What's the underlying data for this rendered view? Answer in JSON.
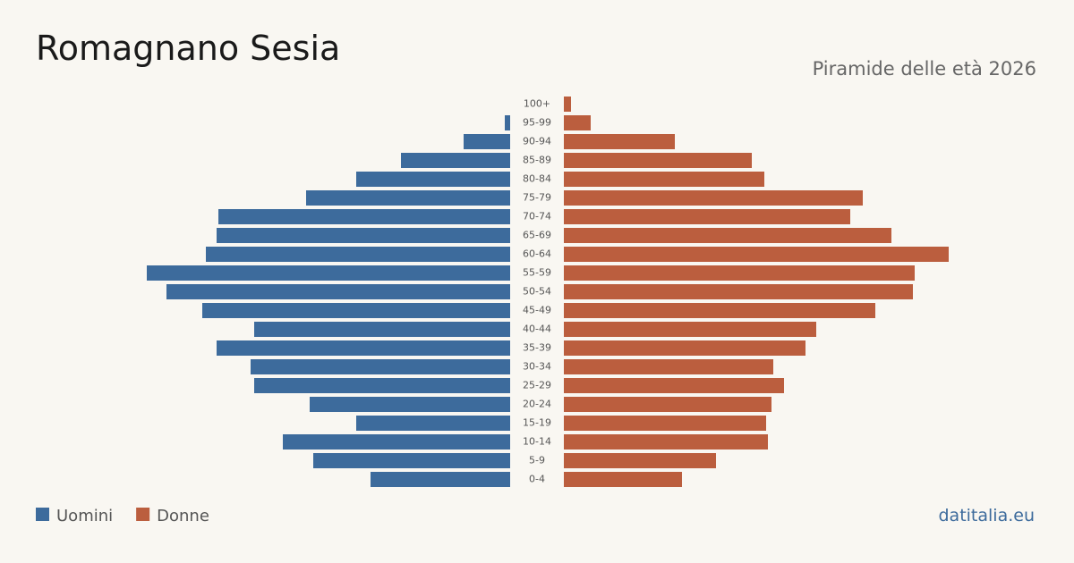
{
  "chart_data": {
    "type": "pyramid",
    "title": "Romagnano Sesia",
    "subtitle": "Piramide delle età 2026",
    "source": "datitalia.eu",
    "categories": [
      "100+",
      "95-99",
      "90-94",
      "85-89",
      "80-84",
      "75-79",
      "70-74",
      "65-69",
      "60-64",
      "55-59",
      "50-54",
      "45-49",
      "40-44",
      "35-39",
      "30-34",
      "25-29",
      "20-24",
      "15-19",
      "10-14",
      "5-9",
      "0-4"
    ],
    "series": [
      {
        "name": "Uomini",
        "color": "#3d6b9c",
        "side": "left",
        "values": [
          0,
          3,
          26,
          61,
          86,
          114,
          163,
          164,
          170,
          203,
          192,
          172,
          143,
          164,
          145,
          143,
          112,
          86,
          127,
          110,
          78
        ]
      },
      {
        "name": "Donne",
        "color": "#bb5e3e",
        "side": "right",
        "values": [
          4,
          15,
          62,
          105,
          112,
          167,
          160,
          183,
          215,
          196,
          195,
          174,
          141,
          135,
          117,
          123,
          116,
          113,
          114,
          85,
          66
        ]
      }
    ]
  }
}
